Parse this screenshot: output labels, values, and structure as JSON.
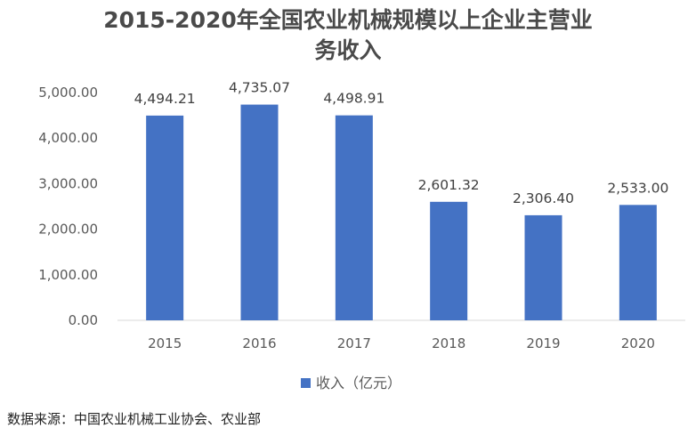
{
  "chart_data": {
    "type": "bar",
    "title": "2015-2020年全国农业机械规模以上企业主营业务收入",
    "title_lines": [
      "2015-2020年全国农业机械规模以上企业主营业",
      "务收入"
    ],
    "categories": [
      "2015",
      "2016",
      "2017",
      "2018",
      "2019",
      "2020"
    ],
    "series": [
      {
        "name": "收入（亿元）",
        "values": [
          4494.21,
          4735.07,
          4498.91,
          2601.32,
          2306.4,
          2533.0
        ],
        "value_labels": [
          "4,494.21",
          "4,735.07",
          "4,498.91",
          "2,601.32",
          "2,306.40",
          "2,533.00"
        ],
        "color": "#4472c4"
      }
    ],
    "ylim": [
      0,
      5000
    ],
    "y_ticks": [
      0,
      1000,
      2000,
      3000,
      4000,
      5000
    ],
    "y_tick_labels": [
      "0.00",
      "1,000.00",
      "2,000.00",
      "3,000.00",
      "4,000.00",
      "5,000.00"
    ],
    "xlabel": "",
    "ylabel": "",
    "grid": false,
    "legend_position": "bottom"
  },
  "source_note": "数据来源：中国农业机械工业协会、农业部"
}
